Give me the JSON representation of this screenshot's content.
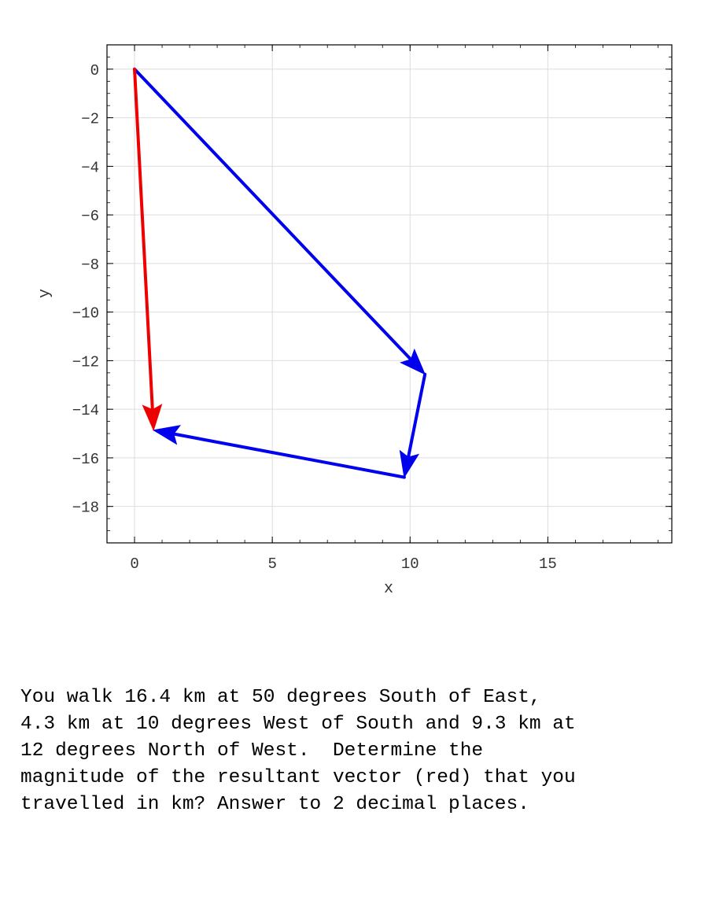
{
  "chart_data": {
    "type": "vector-diagram",
    "xlabel": "x",
    "ylabel": "y",
    "xlim": [
      -1,
      19.5
    ],
    "ylim": [
      -19.5,
      1
    ],
    "xticks": [
      0,
      5,
      10,
      15
    ],
    "yticks": [
      0,
      -2,
      -4,
      -6,
      -8,
      -10,
      -12,
      -14,
      -16,
      -18
    ],
    "grid": true,
    "colors": {
      "component": "#0000ee",
      "resultant": "#ee0000"
    },
    "vectors": [
      {
        "kind": "component",
        "from": [
          0,
          0
        ],
        "to": [
          10.54,
          -12.56
        ]
      },
      {
        "kind": "component",
        "from": [
          10.54,
          -12.56
        ],
        "to": [
          9.79,
          -16.8
        ]
      },
      {
        "kind": "component",
        "from": [
          9.79,
          -16.8
        ],
        "to": [
          0.69,
          -14.86
        ]
      },
      {
        "kind": "resultant",
        "from": [
          0,
          0
        ],
        "to": [
          0.69,
          -14.86
        ]
      }
    ]
  },
  "question": {
    "text": "You walk 16.4 km at 50 degrees South of East,\n4.3 km at 10 degrees West of South and 9.3 km at\n12 degrees North of West.  Determine the\nmagnitude of the resultant vector (red) that you\ntravelled in km? Answer to 2 decimal places."
  }
}
